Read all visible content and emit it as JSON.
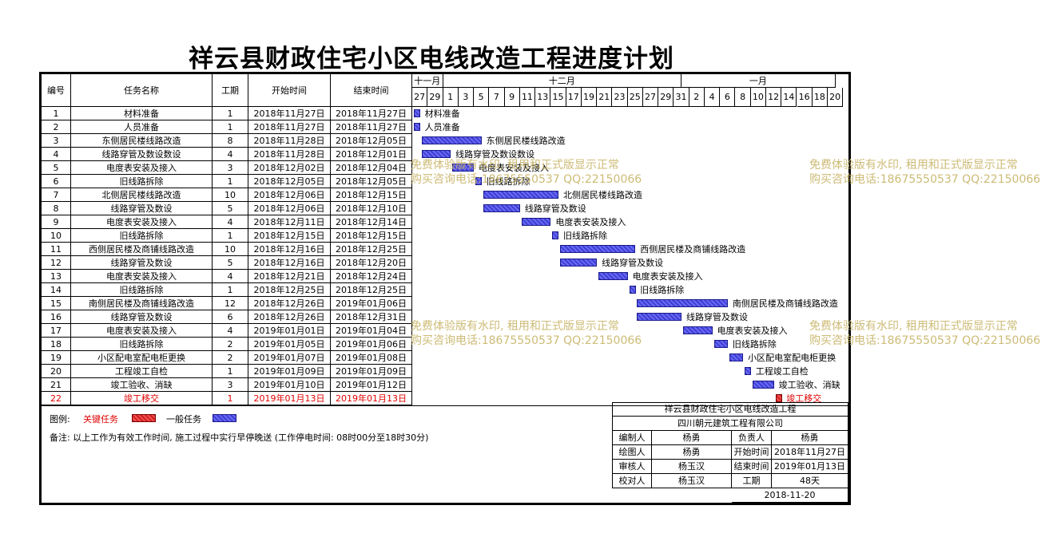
{
  "title": "祥云县财政住宅小区电线改造工程进度计划",
  "headers": [
    "编号",
    "任务名称",
    "工期",
    "开始时间",
    "结束时间"
  ],
  "timeline": {
    "months": [
      "十一月",
      "十二月",
      "一月"
    ],
    "days": [
      "27",
      "29",
      "1",
      "3",
      "5",
      "7",
      "9",
      "11",
      "13",
      "15",
      "17",
      "19",
      "21",
      "23",
      "25",
      "27",
      "29",
      "31",
      "2",
      "4",
      "6",
      "8",
      "10",
      "12",
      "14",
      "16",
      "18",
      "20"
    ]
  },
  "chart_data": {
    "type": "gantt",
    "title": "祥云县财政住宅小区电线改造工程进度计划",
    "unit": "天",
    "x_range": [
      "2018-11-27",
      "2019-01-21"
    ],
    "tasks": [
      {
        "id": "1",
        "name": "材料准备",
        "duration": "1",
        "start": "2018年11月27日",
        "end": "2018年11月27日",
        "start_iso": "2018-11-27",
        "end_iso": "2018-11-27",
        "critical": false
      },
      {
        "id": "2",
        "name": "人员准备",
        "duration": "1",
        "start": "2018年11月27日",
        "end": "2018年11月27日",
        "start_iso": "2018-11-27",
        "end_iso": "2018-11-27",
        "critical": false
      },
      {
        "id": "3",
        "name": "东侧居民楼线路改造",
        "duration": "8",
        "start": "2018年11月28日",
        "end": "2018年12月05日",
        "start_iso": "2018-11-28",
        "end_iso": "2018-12-05",
        "critical": false
      },
      {
        "id": "4",
        "name": "线路穿管及数设数设",
        "duration": "4",
        "start": "2018年11月28日",
        "end": "2018年12月01日",
        "start_iso": "2018-11-28",
        "end_iso": "2018-12-01",
        "critical": false
      },
      {
        "id": "5",
        "name": "电度表安装及接入",
        "duration": "3",
        "start": "2018年12月02日",
        "end": "2018年12月04日",
        "start_iso": "2018-12-02",
        "end_iso": "2018-12-04",
        "critical": false
      },
      {
        "id": "6",
        "name": "旧线路拆除",
        "duration": "1",
        "start": "2018年12月05日",
        "end": "2018年12月05日",
        "start_iso": "2018-12-05",
        "end_iso": "2018-12-05",
        "critical": false
      },
      {
        "id": "7",
        "name": "北侧居民楼线路改造",
        "duration": "10",
        "start": "2018年12月06日",
        "end": "2018年12月15日",
        "start_iso": "2018-12-06",
        "end_iso": "2018-12-15",
        "critical": false
      },
      {
        "id": "8",
        "name": "线路穿管及数设",
        "duration": "5",
        "start": "2018年12月06日",
        "end": "2018年12月10日",
        "start_iso": "2018-12-06",
        "end_iso": "2018-12-10",
        "critical": false
      },
      {
        "id": "9",
        "name": "电度表安装及接入",
        "duration": "4",
        "start": "2018年12月11日",
        "end": "2018年12月14日",
        "start_iso": "2018-12-11",
        "end_iso": "2018-12-14",
        "critical": false
      },
      {
        "id": "10",
        "name": "旧线路拆除",
        "duration": "1",
        "start": "2018年12月15日",
        "end": "2018年12月15日",
        "start_iso": "2018-12-15",
        "end_iso": "2018-12-15",
        "critical": false
      },
      {
        "id": "11",
        "name": "西侧居民楼及商铺线路改造",
        "duration": "10",
        "start": "2018年12月16日",
        "end": "2018年12月25日",
        "start_iso": "2018-12-16",
        "end_iso": "2018-12-25",
        "critical": false
      },
      {
        "id": "12",
        "name": "线路穿管及数设",
        "duration": "5",
        "start": "2018年12月16日",
        "end": "2018年12月20日",
        "start_iso": "2018-12-16",
        "end_iso": "2018-12-20",
        "critical": false
      },
      {
        "id": "13",
        "name": "电度表安装及接入",
        "duration": "4",
        "start": "2018年12月21日",
        "end": "2018年12月24日",
        "start_iso": "2018-12-21",
        "end_iso": "2018-12-24",
        "critical": false
      },
      {
        "id": "14",
        "name": "旧线路拆除",
        "duration": "1",
        "start": "2018年12月25日",
        "end": "2018年12月25日",
        "start_iso": "2018-12-25",
        "end_iso": "2018-12-25",
        "critical": false
      },
      {
        "id": "15",
        "name": "南侧居民楼及商铺线路改造",
        "duration": "12",
        "start": "2018年12月26日",
        "end": "2019年01月06日",
        "start_iso": "2018-12-26",
        "end_iso": "2019-01-06",
        "critical": false
      },
      {
        "id": "16",
        "name": "线路穿管及数设",
        "duration": "6",
        "start": "2018年12月26日",
        "end": "2018年12月31日",
        "start_iso": "2018-12-26",
        "end_iso": "2018-12-31",
        "critical": false
      },
      {
        "id": "17",
        "name": "电度表安装及接入",
        "duration": "4",
        "start": "2019年01月01日",
        "end": "2019年01月04日",
        "start_iso": "2019-01-01",
        "end_iso": "2019-01-04",
        "critical": false
      },
      {
        "id": "18",
        "name": "旧线路拆除",
        "duration": "2",
        "start": "2019年01月05日",
        "end": "2019年01月06日",
        "start_iso": "2019-01-05",
        "end_iso": "2019-01-06",
        "critical": false
      },
      {
        "id": "19",
        "name": "小区配电室配电柜更换",
        "duration": "2",
        "start": "2019年01月07日",
        "end": "2019年01月08日",
        "start_iso": "2019-01-07",
        "end_iso": "2019-01-08",
        "critical": false
      },
      {
        "id": "20",
        "name": "工程竣工自检",
        "duration": "1",
        "start": "2019年01月09日",
        "end": "2019年01月09日",
        "start_iso": "2019-01-09",
        "end_iso": "2019-01-09",
        "critical": false
      },
      {
        "id": "21",
        "name": "竣工验收、消缺",
        "duration": "3",
        "start": "2019年01月10日",
        "end": "2019年01月12日",
        "start_iso": "2019-01-10",
        "end_iso": "2019-01-12",
        "critical": false
      },
      {
        "id": "22",
        "name": "竣工移交",
        "duration": "1",
        "start": "2019年01月13日",
        "end": "2019年01月13日",
        "start_iso": "2019-01-13",
        "end_iso": "2019-01-13",
        "critical": true
      }
    ]
  },
  "legend": {
    "label": "图例:",
    "critical_label": "关键任务",
    "normal_label": "一般任务",
    "critical_color": "#d02020",
    "normal_color": "#3e3ed8"
  },
  "note": "备注: 以上工作为有效工作时间, 施工过程中实行早停晚送 (工作停电时间: 08时00分至18时30分)",
  "info_block": {
    "project": "祥云县财政住宅小区电线改造工程",
    "company": "四川朝元建筑工程有限公司",
    "rows": [
      [
        "编制人",
        "杨勇",
        "负责人",
        "杨勇"
      ],
      [
        "绘图人",
        "杨勇",
        "开始时间",
        "2018年11月27日"
      ],
      [
        "审核人",
        "杨玉汉",
        "结束时间",
        "2019年01月13日"
      ],
      [
        "校对人",
        "杨玉汉",
        "工期",
        "48天"
      ]
    ],
    "date": "2018-11-20"
  },
  "watermark": {
    "line1": "免费体验版有水印, 租用和正式版显示正常",
    "line2": "购买咨询电话:18675550537 QQ:22150066"
  }
}
